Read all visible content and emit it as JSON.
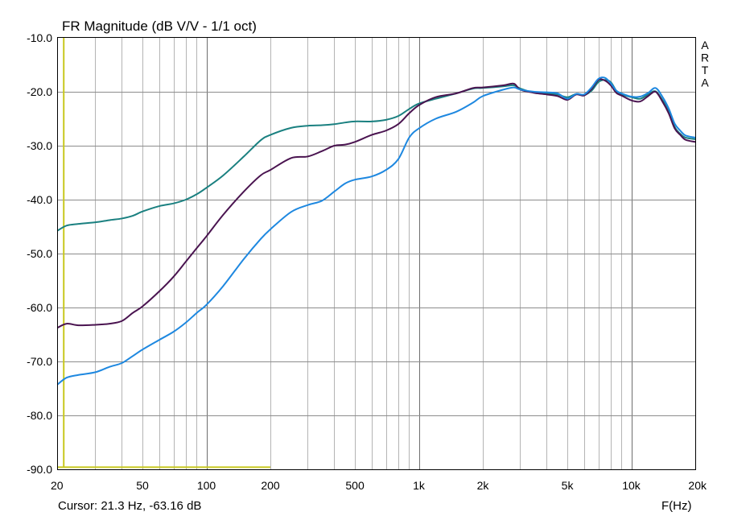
{
  "chart_data": {
    "type": "line",
    "title": "FR Magnitude (dB V/V - 1/1 oct)",
    "xlabel": "F(Hz)",
    "ylabel": "",
    "x_scale": "log",
    "xlim": [
      20,
      20000
    ],
    "ylim": [
      -90,
      -10
    ],
    "grid": true,
    "y_ticks": [
      -10,
      -20,
      -30,
      -40,
      -50,
      -60,
      -70,
      -80,
      -90
    ],
    "y_tick_labels": [
      "-10.0",
      "-20.0",
      "-30.0",
      "-40.0",
      "-50.0",
      "-60.0",
      "-70.0",
      "-80.0",
      "-90.0"
    ],
    "x_ticks": [
      20,
      50,
      100,
      200,
      500,
      1000,
      2000,
      5000,
      10000,
      20000
    ],
    "x_tick_labels": [
      "20",
      "50",
      "100",
      "200",
      "500",
      "1k",
      "2k",
      "5k",
      "10k",
      "20k"
    ],
    "side_label": "ARTA",
    "cursor_text": "Cursor: 21.3 Hz, -63.16 dB",
    "cursor": {
      "x": 21.3,
      "y_top": -10,
      "y_bottom": -89.6,
      "floor_x_end": 200,
      "color": "#c8c81e"
    },
    "series": [
      {
        "color": "#1a8080",
        "x": [
          20,
          22,
          25,
          30,
          35,
          40,
          45,
          50,
          60,
          70,
          80,
          90,
          100,
          120,
          150,
          180,
          200,
          250,
          300,
          350,
          400,
          450,
          500,
          600,
          700,
          800,
          900,
          1000,
          1200,
          1500,
          1800,
          2000,
          2500,
          2800,
          3000,
          3500,
          4000,
          4500,
          5000,
          5500,
          6000,
          6500,
          7000,
          7500,
          8000,
          8500,
          9000,
          10000,
          11000,
          12000,
          13000,
          14000,
          15000,
          16000,
          17000,
          18000,
          20000
        ],
        "y": [
          -45.7,
          -44.8,
          -44.5,
          -44.2,
          -43.8,
          -43.5,
          -43.0,
          -42.2,
          -41.2,
          -40.7,
          -40.0,
          -39.0,
          -37.8,
          -35.5,
          -32.0,
          -29.0,
          -28.0,
          -26.7,
          -26.3,
          -26.2,
          -26.0,
          -25.7,
          -25.5,
          -25.5,
          -25.2,
          -24.5,
          -23.2,
          -22.2,
          -21.3,
          -20.3,
          -19.4,
          -19.3,
          -19.0,
          -18.8,
          -19.4,
          -20.2,
          -20.3,
          -20.5,
          -21.0,
          -20.4,
          -20.6,
          -19.8,
          -18.2,
          -17.8,
          -18.2,
          -19.8,
          -20.5,
          -21.0,
          -21.3,
          -20.5,
          -19.9,
          -21.5,
          -23.5,
          -26.5,
          -27.8,
          -28.5,
          -28.8
        ]
      },
      {
        "color": "#4a1450",
        "x": [
          20,
          22,
          25,
          30,
          35,
          40,
          45,
          50,
          60,
          70,
          80,
          90,
          100,
          120,
          150,
          180,
          200,
          250,
          300,
          350,
          400,
          450,
          500,
          600,
          700,
          800,
          900,
          1000,
          1200,
          1500,
          1800,
          2000,
          2500,
          2800,
          3000,
          3500,
          4000,
          4500,
          5000,
          5500,
          6000,
          6500,
          7000,
          7500,
          8000,
          8500,
          9000,
          10000,
          11000,
          12000,
          13000,
          14000,
          15000,
          16000,
          17000,
          18000,
          20000
        ],
        "y": [
          -63.7,
          -63.0,
          -63.3,
          -63.2,
          -63.0,
          -62.5,
          -61.0,
          -59.8,
          -57.0,
          -54.3,
          -51.5,
          -49.0,
          -46.8,
          -42.8,
          -38.5,
          -35.5,
          -34.5,
          -32.3,
          -32.0,
          -31.0,
          -30.0,
          -29.8,
          -29.3,
          -28.0,
          -27.2,
          -26.0,
          -24.0,
          -22.5,
          -21.0,
          -20.3,
          -19.3,
          -19.2,
          -18.8,
          -18.5,
          -19.6,
          -20.2,
          -20.5,
          -20.8,
          -21.5,
          -20.5,
          -20.7,
          -19.5,
          -17.8,
          -17.9,
          -18.8,
          -20.2,
          -20.7,
          -21.6,
          -21.8,
          -20.8,
          -20.0,
          -21.8,
          -24.0,
          -26.8,
          -28.0,
          -28.9,
          -29.3
        ]
      },
      {
        "color": "#1e88e0",
        "x": [
          20,
          22,
          25,
          30,
          35,
          40,
          45,
          50,
          60,
          70,
          80,
          90,
          100,
          120,
          150,
          180,
          200,
          250,
          300,
          350,
          400,
          450,
          500,
          600,
          700,
          800,
          900,
          1000,
          1200,
          1500,
          1800,
          2000,
          2500,
          2800,
          3000,
          3500,
          4000,
          4500,
          5000,
          5500,
          6000,
          6500,
          7000,
          7500,
          8000,
          8500,
          9000,
          10000,
          11000,
          12000,
          13000,
          14000,
          15000,
          16000,
          17000,
          18000,
          20000
        ],
        "y": [
          -74.2,
          -73.0,
          -72.5,
          -72.0,
          -71.0,
          -70.3,
          -69.0,
          -67.8,
          -66.0,
          -64.5,
          -62.8,
          -61.0,
          -59.5,
          -56.0,
          -51.0,
          -47.3,
          -45.5,
          -42.3,
          -41.0,
          -40.2,
          -38.5,
          -37.0,
          -36.3,
          -35.7,
          -34.5,
          -32.5,
          -28.5,
          -26.8,
          -25.0,
          -23.7,
          -22.0,
          -20.8,
          -19.6,
          -19.2,
          -19.6,
          -20.0,
          -20.1,
          -20.3,
          -21.3,
          -20.4,
          -20.5,
          -19.2,
          -17.6,
          -17.4,
          -18.4,
          -19.8,
          -20.3,
          -20.9,
          -20.9,
          -20.2,
          -19.3,
          -20.9,
          -23.1,
          -25.9,
          -27.2,
          -28.1,
          -28.5
        ]
      }
    ]
  }
}
